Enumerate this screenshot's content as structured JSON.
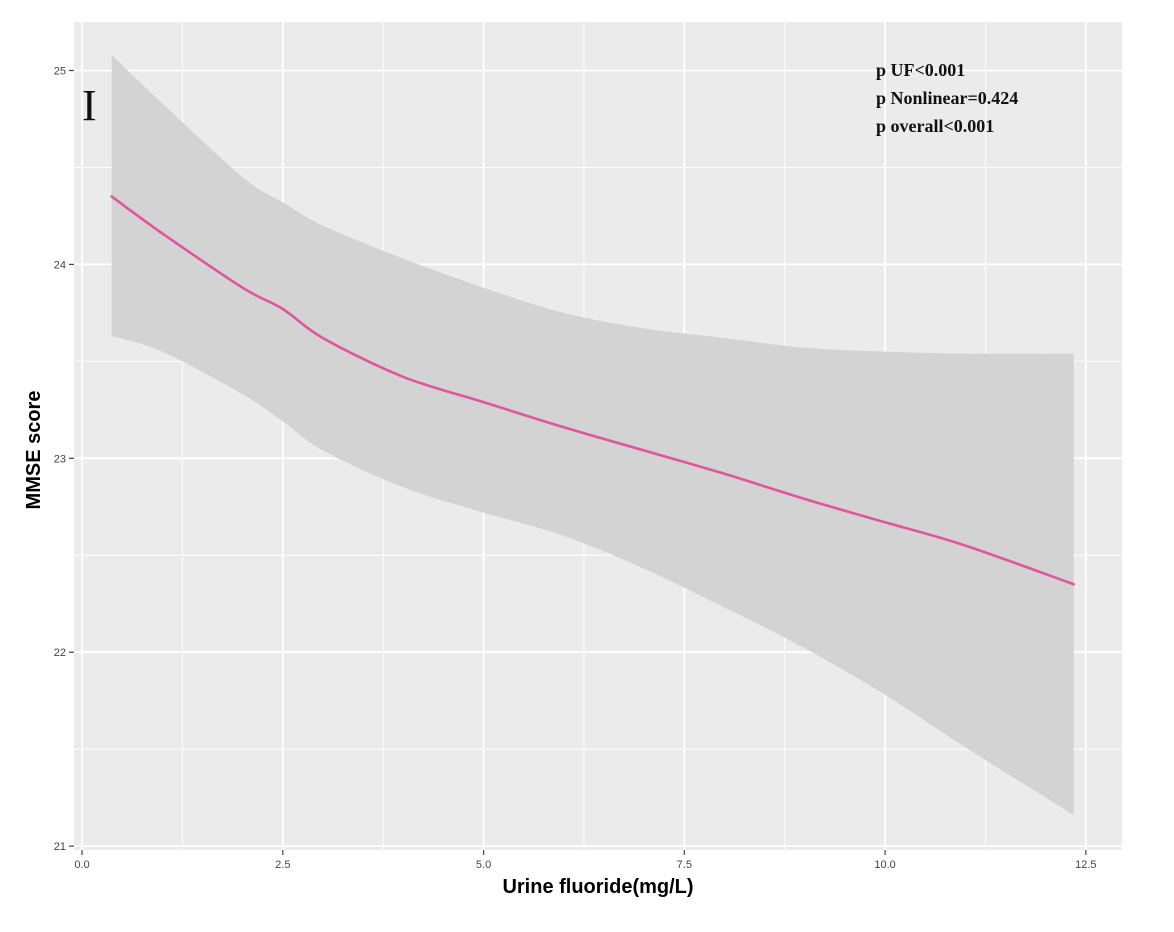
{
  "chart_data": {
    "type": "line",
    "panel_label": "I",
    "xlabel": "Urine fluoride(mg/L)",
    "ylabel": "MMSE score",
    "xlim": [
      -0.1,
      12.95
    ],
    "ylim": [
      20.98,
      25.25
    ],
    "x_ticks": [
      0.0,
      2.5,
      5.0,
      7.5,
      10.0,
      12.5
    ],
    "x_tick_labels": [
      "0.0",
      "2.5",
      "5.0",
      "7.5",
      "10.0",
      "12.5"
    ],
    "y_ticks": [
      21,
      22,
      23,
      24,
      25
    ],
    "y_tick_labels": [
      "21",
      "22",
      "23",
      "24",
      "25"
    ],
    "grid": true,
    "series": [
      {
        "name": "fit",
        "color": "#e0569c",
        "x": [
          0.37,
          1.0,
          2.0,
          2.5,
          3.0,
          4.0,
          5.0,
          6.0,
          7.0,
          8.0,
          9.0,
          10.0,
          11.0,
          12.35
        ],
        "y": [
          24.35,
          24.16,
          23.88,
          23.77,
          23.62,
          23.42,
          23.29,
          23.16,
          23.04,
          22.92,
          22.79,
          22.67,
          22.55,
          22.35
        ]
      }
    ],
    "confidence_band": {
      "color": "#d3d3d3",
      "x": [
        0.37,
        1.0,
        2.0,
        2.5,
        3.0,
        4.0,
        5.0,
        6.0,
        7.0,
        8.0,
        9.0,
        10.0,
        11.0,
        12.35
      ],
      "lower": [
        23.63,
        23.55,
        23.33,
        23.19,
        23.04,
        22.85,
        22.72,
        22.6,
        22.43,
        22.23,
        22.02,
        21.78,
        21.51,
        21.16
      ],
      "upper": [
        25.08,
        24.83,
        24.45,
        24.32,
        24.2,
        24.03,
        23.88,
        23.75,
        23.67,
        23.62,
        23.57,
        23.55,
        23.54,
        23.54
      ]
    },
    "annotations": [
      "p UF<0.001",
      "p Nonlinear=0.424",
      "p overall<0.001"
    ],
    "colors": {
      "panel_background": "#ebebeb",
      "grid": "#ffffff",
      "page_background": "#ffffff"
    }
  }
}
